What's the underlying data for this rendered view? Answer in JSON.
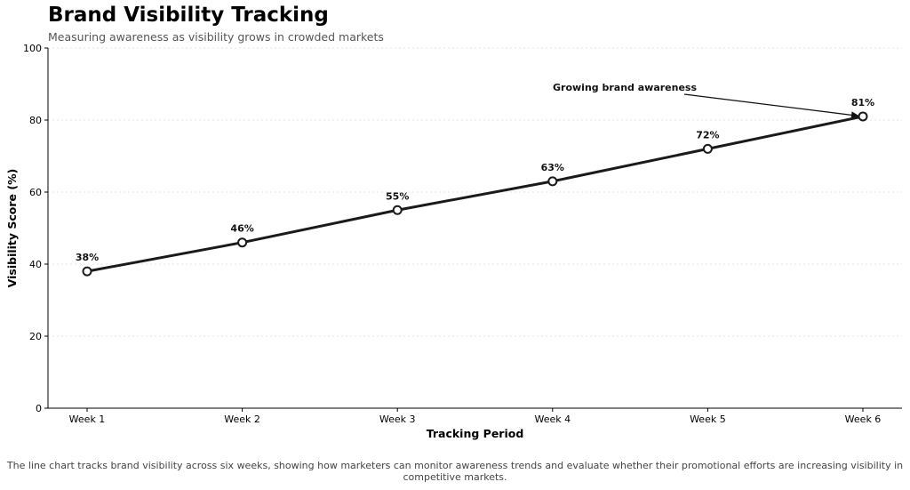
{
  "title": "Brand Visibility Tracking",
  "subtitle": "Measuring awareness as visibility grows in crowded markets",
  "caption": "The line chart tracks brand visibility across six weeks, showing how marketers can monitor awareness trends and evaluate whether their promotional efforts are increasing visibility in competitive markets.",
  "chart_data": {
    "type": "line",
    "title": "Brand Visibility Tracking",
    "subtitle": "Measuring awareness as visibility grows in crowded markets",
    "xlabel": "Tracking Period",
    "ylabel": "Visibility Score (%)",
    "categories": [
      "Week 1",
      "Week 2",
      "Week 3",
      "Week 4",
      "Week 5",
      "Week 6"
    ],
    "values": [
      38,
      46,
      55,
      63,
      72,
      81
    ],
    "data_labels": [
      "38%",
      "46%",
      "55%",
      "63%",
      "72%",
      "81%"
    ],
    "ylim": [
      0,
      100
    ],
    "yticks": [
      0,
      20,
      40,
      60,
      80,
      100
    ],
    "grid": "horizontal-dotted",
    "line_color": "#1a1a1a",
    "marker_fill": "#ffffff",
    "annotation": {
      "text": "Growing brand awareness",
      "target_category": "Week 6",
      "target_value": 81
    }
  }
}
